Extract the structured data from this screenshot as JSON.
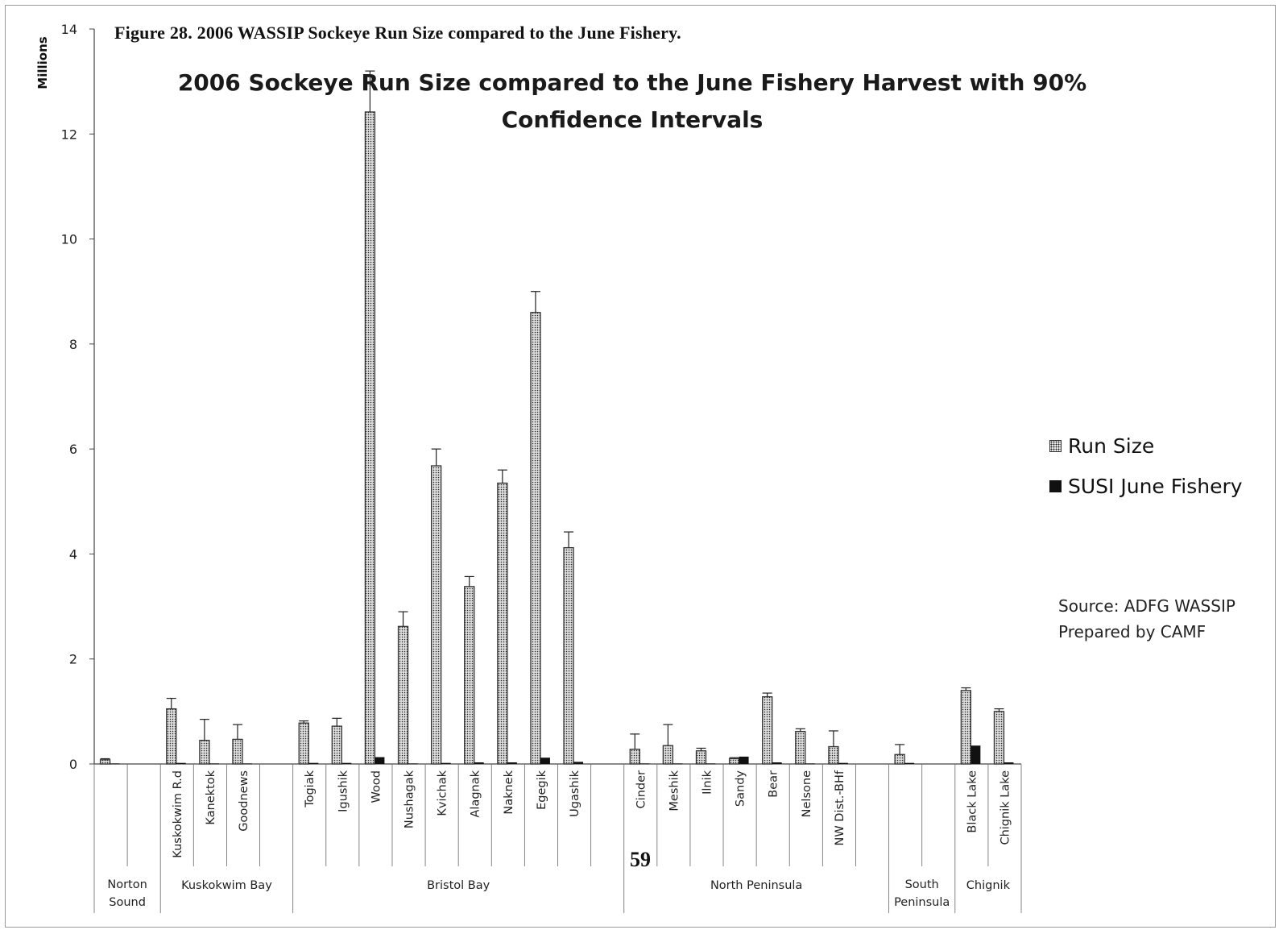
{
  "figure_caption": "Figure 28.  2006 WASSIP  Sockeye Run Size compared to the June Fishery.",
  "page_number": "59",
  "source_note": [
    "Source: ADFG WASSIP",
    "Prepared by CAMF"
  ],
  "colors": {
    "run_size_fill": "#d9d9d9",
    "run_size_dots": "#222222",
    "susi_fill": "#111111",
    "axis": "#444444"
  },
  "chart_data": {
    "type": "bar",
    "title": "2006 Sockeye Run Size compared to the June Fishery Harvest with 90% Confidence Intervals",
    "title_lines": [
      "2006 Sockeye Run Size compared to the June Fishery Harvest with 90%",
      "Confidence Intervals"
    ],
    "ylabel": "Millions",
    "ylim": [
      0,
      14
    ],
    "yticks": [
      0,
      2,
      4,
      6,
      8,
      10,
      12,
      14
    ],
    "grid": false,
    "legend_position": "right",
    "categories": [
      "",
      "",
      "Kuskokwim R.d",
      "Kanektok",
      "Goodnews",
      "",
      "Togiak",
      "Igushik",
      "Wood",
      "Nushagak",
      "Kvichak",
      "Alagnak",
      "Naknek",
      "Egegik",
      "Ugashik",
      "",
      "Cinder",
      "Meshik",
      "Ilnik",
      "Sandy",
      "Bear",
      "Nelsone",
      "NW Dist.-BHf",
      "",
      "",
      "",
      "Black Lake",
      "Chignik Lake"
    ],
    "groups": [
      {
        "name": [
          "Norton",
          "Sound"
        ],
        "start": 0,
        "end": 2
      },
      {
        "name": [
          "Kuskokwim Bay"
        ],
        "start": 2,
        "end": 6
      },
      {
        "name": [
          "Bristol Bay"
        ],
        "start": 6,
        "end": 16
      },
      {
        "name": [
          "North Peninsula"
        ],
        "start": 16,
        "end": 24
      },
      {
        "name": [
          "South",
          "Peninsula"
        ],
        "start": 24,
        "end": 26
      },
      {
        "name": [
          "Chignik"
        ],
        "start": 26,
        "end": 28
      }
    ],
    "series": [
      {
        "name": "Run Size",
        "values": [
          0.08,
          null,
          1.05,
          0.45,
          0.47,
          null,
          0.78,
          0.72,
          12.42,
          2.62,
          5.68,
          3.38,
          5.35,
          8.6,
          4.12,
          null,
          0.28,
          0.35,
          0.25,
          0.1,
          1.28,
          0.62,
          0.33,
          null,
          0.18,
          null,
          1.4,
          1.0
        ],
        "ci_upper": [
          0.1,
          null,
          1.25,
          0.85,
          0.75,
          null,
          0.82,
          0.87,
          13.2,
          2.9,
          6.0,
          3.57,
          5.6,
          9.0,
          4.42,
          null,
          0.57,
          0.75,
          0.3,
          0.12,
          1.35,
          0.67,
          0.63,
          null,
          0.37,
          null,
          1.45,
          1.05
        ]
      },
      {
        "name": "SUSI June Fishery",
        "values": [
          0.01,
          null,
          0.02,
          0.01,
          0.01,
          null,
          0.02,
          0.02,
          0.13,
          0.01,
          0.02,
          0.03,
          0.03,
          0.12,
          0.04,
          null,
          0.01,
          0.01,
          0.01,
          0.14,
          0.03,
          0.01,
          0.02,
          null,
          0.02,
          null,
          0.35,
          0.03
        ]
      }
    ]
  }
}
